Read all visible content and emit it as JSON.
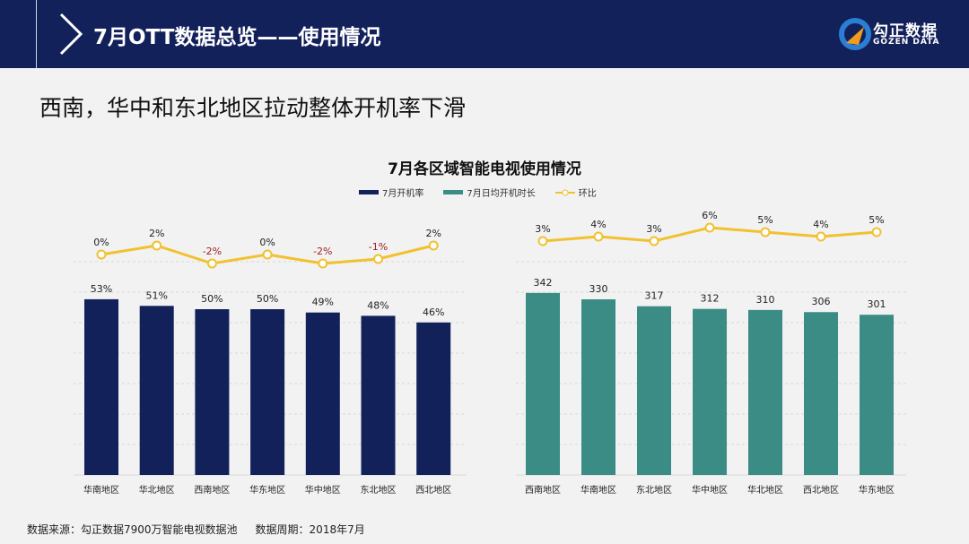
{
  "header": {
    "title": "7月OTT数据总览——使用情况",
    "logo_cn": "勾正数据",
    "logo_en": "GOZEN DATA"
  },
  "subtitle": "西南，华中和东北地区拉动整体开机率下滑",
  "footer": {
    "source": "数据来源：勾正数据7900万智能电视数据池",
    "period": "数据周期：2018年7月"
  },
  "colors": {
    "navy": "#13215b",
    "teal": "#3a8c85",
    "yellow": "#f2c12e",
    "negative": "#a11f1f"
  },
  "chart_data": [
    {
      "type": "bar",
      "title": "7月各区域智能电视使用情况",
      "legend": [
        "7月开机率",
        "7月日均开机时长",
        "环比"
      ],
      "categories": [
        "华南地区",
        "华北地区",
        "西南地区",
        "华东地区",
        "华中地区",
        "东北地区",
        "西北地区"
      ],
      "series": [
        {
          "name": "7月开机率",
          "type": "bar",
          "values": [
            53,
            51,
            50,
            50,
            49,
            48,
            46
          ],
          "labels": [
            "53%",
            "51%",
            "50%",
            "50%",
            "49%",
            "48%",
            "46%"
          ]
        },
        {
          "name": "环比",
          "type": "line",
          "values": [
            0,
            2,
            -2,
            0,
            -2,
            -1,
            2
          ],
          "labels": [
            "0%",
            "2%",
            "-2%",
            "0%",
            "-2%",
            "-1%",
            "2%"
          ]
        }
      ]
    },
    {
      "type": "bar",
      "categories": [
        "西南地区",
        "华南地区",
        "东北地区",
        "华中地区",
        "华北地区",
        "西北地区",
        "华东地区"
      ],
      "series": [
        {
          "name": "7月日均开机时长",
          "type": "bar",
          "values": [
            342,
            330,
            317,
            312,
            310,
            306,
            301
          ],
          "labels": [
            "342",
            "330",
            "317",
            "312",
            "310",
            "306",
            "301"
          ]
        },
        {
          "name": "环比",
          "type": "line",
          "values": [
            3,
            4,
            3,
            6,
            5,
            4,
            5
          ],
          "labels": [
            "3%",
            "4%",
            "3%",
            "6%",
            "5%",
            "4%",
            "5%"
          ]
        }
      ]
    }
  ]
}
